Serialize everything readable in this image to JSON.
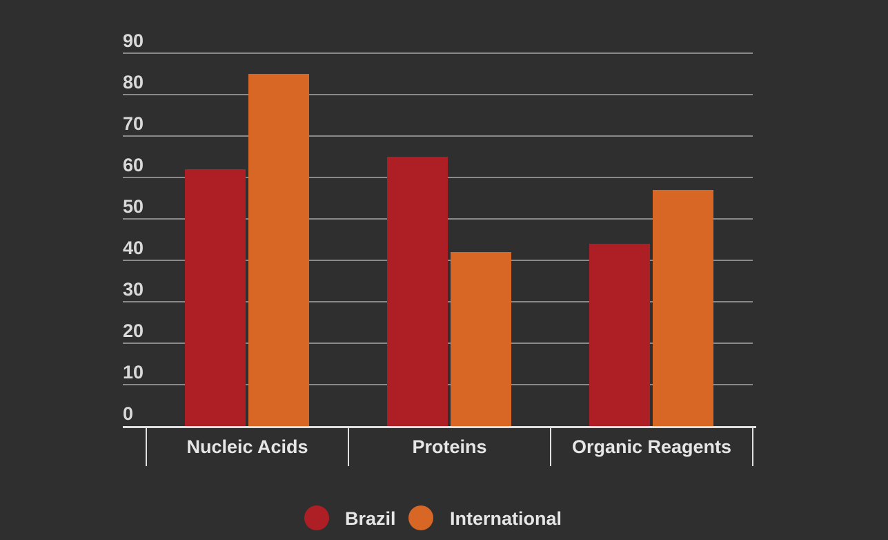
{
  "chart_data": {
    "type": "bar",
    "categories": [
      "Nucleic Acids",
      "Proteins",
      "Organic Reagents"
    ],
    "series": [
      {
        "name": "Brazil",
        "color": "#ad1f24",
        "values": [
          62,
          65,
          44
        ]
      },
      {
        "name": "International",
        "color": "#d86726",
        "values": [
          85,
          42,
          57
        ]
      }
    ],
    "yticks": [
      "0",
      "10",
      "20",
      "30",
      "40",
      "50",
      "60",
      "70",
      "80",
      "90"
    ],
    "ylim": [
      0,
      90
    ],
    "grid": true,
    "legend": "bottom-center",
    "colors": {
      "background": "#2f2f2f",
      "grid": "#8a8a8a",
      "axis": "#e0e0e0",
      "text": "#e6e6e6"
    }
  }
}
